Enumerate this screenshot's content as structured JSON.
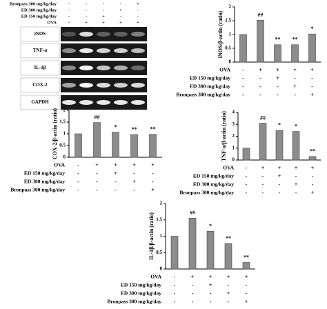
{
  "blot": {
    "conditions": [
      {
        "label": "Bronpass 300 mg/kg/day",
        "signs": [
          "-",
          "-",
          "-",
          "-",
          "+"
        ]
      },
      {
        "label": "ED 300 mg/kg/day",
        "signs": [
          "-",
          "-",
          "-",
          "+",
          "-"
        ]
      },
      {
        "label": "ED 150 mg/kg/day",
        "signs": [
          "-",
          "-",
          "+",
          "-",
          "-"
        ]
      },
      {
        "label": "OVA",
        "signs": [
          "-",
          "+",
          "+",
          "+",
          "+"
        ]
      }
    ],
    "rows": [
      "iNOS",
      "TNF-α",
      "IL-1β",
      "COX-2",
      "GAPDH"
    ]
  },
  "chart_data": [
    {
      "type": "bar",
      "y_label": "iNOS/β-actin (ratio)",
      "color": "#8c8c8c",
      "values": [
        1.0,
        1.52,
        0.63,
        0.63,
        1.02
      ],
      "annotations": [
        null,
        "##",
        "**",
        "**",
        "*"
      ],
      "ylim": [
        0,
        2
      ],
      "yticks": [
        0,
        0.5,
        1,
        1.5,
        2
      ],
      "conditions": [
        {
          "label": "OVA",
          "signs": [
            "-",
            "+",
            "+",
            "+",
            "+"
          ]
        },
        {
          "label": "ED 150 mg/kg/day",
          "signs": [
            "-",
            "-",
            "+",
            "-",
            "-"
          ]
        },
        {
          "label": "ED 300 mg/kg/day",
          "signs": [
            "-",
            "-",
            "-",
            "+",
            "-"
          ]
        },
        {
          "label": "Bronpass 300 mg/kg/day",
          "signs": [
            "-",
            "-",
            "-",
            "-",
            "+"
          ]
        }
      ]
    },
    {
      "type": "bar",
      "y_label": "COX-2/β-actin (ratio)",
      "color": "#8c8c8c",
      "values": [
        1.0,
        1.48,
        1.07,
        0.97,
        0.98
      ],
      "annotations": [
        null,
        "##",
        "*",
        "**",
        "**"
      ],
      "ylim": [
        0,
        2
      ],
      "yticks": [
        0,
        0.5,
        1,
        1.5,
        2
      ],
      "conditions": [
        {
          "label": "OVA",
          "signs": [
            "-",
            "+",
            "+",
            "+",
            "+"
          ]
        },
        {
          "label": "ED 150 mg/kg/day",
          "signs": [
            "-",
            "-",
            "+",
            "-",
            "-"
          ]
        },
        {
          "label": "ED 300 mg/kg/day",
          "signs": [
            "-",
            "-",
            "-",
            "+",
            "-"
          ]
        },
        {
          "label": "Bronpass 300 mg/kg/day",
          "signs": [
            "-",
            "-",
            "-",
            "-",
            "+"
          ]
        }
      ]
    },
    {
      "type": "bar",
      "y_label": "TNF-α/β-actin (ratio)",
      "color": "#8c8c8c",
      "values": [
        1.0,
        3.1,
        2.5,
        2.4,
        0.3
      ],
      "annotations": [
        null,
        "##",
        "*",
        "*",
        "**"
      ],
      "ylim": [
        0,
        4
      ],
      "yticks": [
        0,
        1,
        2,
        3,
        4
      ],
      "conditions": [
        {
          "label": "OVA",
          "signs": [
            "-",
            "+",
            "+",
            "+",
            "+"
          ]
        },
        {
          "label": "ED 150 mg/kg/day",
          "signs": [
            "-",
            "-",
            "+",
            "-",
            "-"
          ]
        },
        {
          "label": "ED 300 mg/kg/day",
          "signs": [
            "-",
            "-",
            "-",
            "+",
            "-"
          ]
        },
        {
          "label": "Bronpass 300 mg/kg/day",
          "signs": [
            "-",
            "-",
            "-",
            "-",
            "+"
          ]
        }
      ]
    },
    {
      "type": "bar",
      "y_label": "IL-1β/β-actin (ratio)",
      "color": "#8c8c8c",
      "values": [
        1.0,
        1.55,
        1.15,
        0.78,
        0.2
      ],
      "annotations": [
        null,
        "##",
        "*",
        "**",
        "**"
      ],
      "ylim": [
        0,
        2
      ],
      "yticks": [
        0,
        0.5,
        1,
        1.5,
        2
      ],
      "conditions": [
        {
          "label": "OVA",
          "signs": [
            "-",
            "+",
            "+",
            "+",
            "+"
          ]
        },
        {
          "label": "ED 150 mg/kg/day",
          "signs": [
            "-",
            "-",
            "+",
            "-",
            "-"
          ]
        },
        {
          "label": "ED 300 mg/kg/day",
          "signs": [
            "-",
            "-",
            "-",
            "+",
            "-"
          ]
        },
        {
          "label": "Bronpass 300 mg/kg/day",
          "signs": [
            "-",
            "-",
            "-",
            "-",
            "+"
          ]
        }
      ]
    }
  ]
}
